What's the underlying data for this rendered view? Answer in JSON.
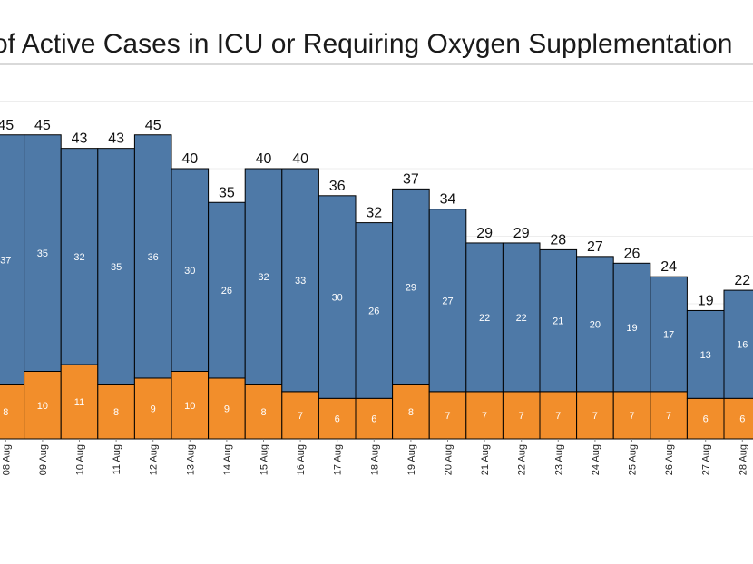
{
  "chart_data": {
    "type": "bar",
    "stacked": true,
    "title": "of Active Cases in ICU or Requiring Oxygen Supplementation",
    "categories": [
      "08 Aug",
      "09 Aug",
      "10 Aug",
      "11 Aug",
      "12 Aug",
      "13 Aug",
      "14 Aug",
      "15 Aug",
      "16 Aug",
      "17 Aug",
      "18 Aug",
      "19 Aug",
      "20 Aug",
      "21 Aug",
      "22 Aug",
      "23 Aug",
      "24 Aug",
      "25 Aug",
      "26 Aug",
      "27 Aug",
      "28 Aug"
    ],
    "series": [
      {
        "values": [
          8,
          10,
          11,
          8,
          9,
          10,
          9,
          8,
          7,
          6,
          6,
          8,
          7,
          7,
          7,
          7,
          7,
          7,
          7,
          6,
          6
        ],
        "color": "#f28e2b"
      },
      {
        "values": [
          37,
          35,
          32,
          35,
          36,
          30,
          26,
          32,
          33,
          30,
          26,
          29,
          27,
          22,
          22,
          21,
          20,
          19,
          17,
          13,
          16
        ],
        "color": "#4e79a7"
      }
    ],
    "totals": [
      45,
      45,
      43,
      43,
      45,
      40,
      35,
      40,
      40,
      36,
      32,
      37,
      34,
      29,
      29,
      28,
      27,
      26,
      24,
      19,
      22
    ],
    "ylim": [
      0,
      54
    ],
    "grid": true
  }
}
